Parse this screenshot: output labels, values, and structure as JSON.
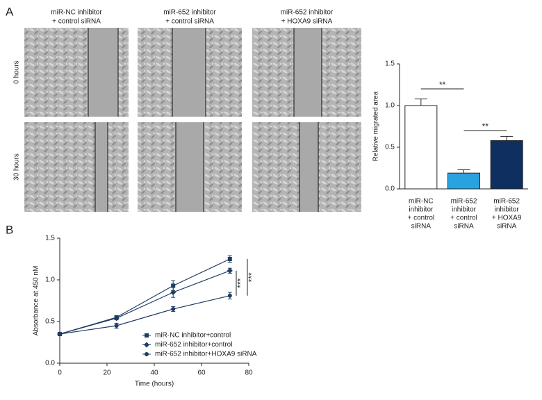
{
  "panel_labels": [
    "A",
    "B"
  ],
  "images": {
    "columns": [
      [
        "miR-NC inhibitor",
        "+ control siRNA"
      ],
      [
        "miR-652 inhibitor",
        "+ control siRNA"
      ],
      [
        "miR-652 inhibitor",
        "+ HOXA9 siRNA"
      ]
    ],
    "rows": [
      "0 hours",
      "30 hours"
    ]
  },
  "chart_data": [
    {
      "type": "bar",
      "ylabel": "Relative migrated area",
      "categories": [
        [
          "miR-NC",
          "inhibitor",
          "+ control",
          "siRNA"
        ],
        [
          "miR-652",
          "inhibitor",
          "+ control",
          "siRNA"
        ],
        [
          "miR-652",
          "inhibitor",
          "+ HOXA9",
          "siRNA"
        ]
      ],
      "values": [
        1.0,
        0.19,
        0.58
      ],
      "errors": [
        0.08,
        0.04,
        0.05
      ],
      "colors": [
        "#ffffff",
        "#29a3e0",
        "#0e2f5f"
      ],
      "ylim": [
        0,
        1.5
      ],
      "yticks": [
        {
          "value": 0,
          "label": "0.0"
        },
        {
          "value": 0.5,
          "label": "0.5"
        },
        {
          "value": 1,
          "label": "1.0"
        },
        {
          "value": 1.5,
          "label": "1.5"
        }
      ],
      "annotations": [
        "**",
        "**"
      ]
    },
    {
      "type": "line",
      "xlabel": "Time (hours)",
      "ylabel": "Absorbance at 450 nM",
      "x": [
        0,
        24,
        48,
        72
      ],
      "series": [
        {
          "name": "miR-NC inhibitor+control",
          "color": "#1f3d63",
          "marker": "square",
          "values": [
            0.35,
            0.55,
            0.93,
            1.25
          ],
          "errors": [
            0.02,
            0.02,
            0.06,
            0.04
          ]
        },
        {
          "name": "miR-652 inhibitor+control",
          "color": "#1f3d63",
          "marker": "diamond",
          "values": [
            0.35,
            0.54,
            0.85,
            1.11
          ],
          "errors": [
            0.02,
            0.02,
            0.06,
            0.03
          ]
        },
        {
          "name": "miR-652 inhibitor+HOXA9 siRNA",
          "color": "#1f3d63",
          "marker": "circle",
          "values": [
            0.35,
            0.45,
            0.65,
            0.81
          ],
          "errors": [
            0.02,
            0.03,
            0.03,
            0.04
          ]
        }
      ],
      "xlim": [
        0,
        80
      ],
      "xticks": [
        0,
        20,
        40,
        60,
        80
      ],
      "ylim": [
        0,
        1.5
      ],
      "yticks": [
        {
          "value": 0,
          "label": "0.0"
        },
        {
          "value": 0.5,
          "label": "0.5"
        },
        {
          "value": 1,
          "label": "1.0"
        },
        {
          "value": 1.5,
          "label": "1.5"
        }
      ],
      "legend": "lower center",
      "annotations": [
        "***",
        "***"
      ]
    }
  ]
}
